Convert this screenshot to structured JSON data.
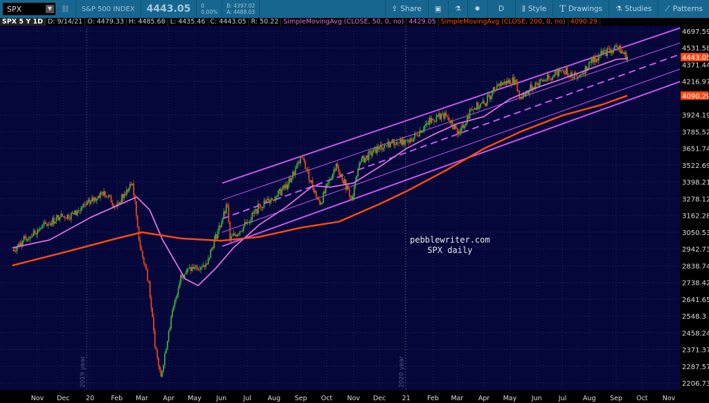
{
  "toolbar": {
    "symbol": "SPX",
    "symbol_desc": "S&P 500 INDEX",
    "last": "4443.05",
    "change": "0",
    "change_pct": "0.00%",
    "bid": "B: 4397.02",
    "ask": "A: 4488.03",
    "buttons": [
      {
        "label": "Share",
        "icon": "share-icon"
      },
      {
        "label": "",
        "icon": "camera-icon"
      },
      {
        "label": "",
        "icon": "flask-icon"
      },
      {
        "label": "",
        "icon": "gear-icon"
      },
      {
        "label": "D",
        "icon": ""
      },
      {
        "label": "Style",
        "icon": "candles-icon"
      },
      {
        "label": "Drawings",
        "icon": "text-t-icon"
      },
      {
        "label": "Studies",
        "icon": "flask-icon"
      },
      {
        "label": "Patterns",
        "icon": "pattern-icon"
      }
    ]
  },
  "infobar": {
    "title": "SPX 5 Y 1D",
    "date": "D: 9/14/21",
    "open": "O: 4479.33",
    "high": "H: 4485.68",
    "low": "L: 4435.46",
    "close": "C: 4443.05",
    "range": "R: 50.22",
    "sma50_label": "SimpleMovingAvg (CLOSE, 50, 0, no)",
    "sma50_value": "4429.05",
    "sma200_label": "SimpleMovingAvg (CLOSE, 200, 0, no)",
    "sma200_value": "4090.29"
  },
  "colors": {
    "background": "#05063a",
    "up": "#3fae3f",
    "down": "#e8461c",
    "sma50": "#e070e0",
    "sma200": "#ff4a10",
    "channel": "#cc55ee",
    "toolbar": "#17668f"
  },
  "chart_data": {
    "type": "candlestick",
    "scale": "log",
    "ylim": [
      2170,
      4760
    ],
    "grid": true,
    "yticks": [
      "4697.59",
      "4531.58",
      "4371.44",
      "4216.97",
      "3924.19",
      "3785.52",
      "3651.74",
      "3522.69",
      "3398.21",
      "3278.12",
      "3162.28",
      "3050.53",
      "2942.73",
      "2838.74",
      "2738.42",
      "2641.65",
      "2548.3",
      "2458.24",
      "2371.37",
      "2287.57",
      "2206.73"
    ],
    "xticks": [
      [
        "2019-11-01",
        "Nov"
      ],
      [
        "2019-12-01",
        "Dec"
      ],
      [
        "2020-01-01",
        "20"
      ],
      [
        "2020-02-01",
        "Feb"
      ],
      [
        "2020-03-01",
        "Mar"
      ],
      [
        "2020-04-01",
        "Apr"
      ],
      [
        "2020-05-01",
        "May"
      ],
      [
        "2020-06-01",
        "Jun"
      ],
      [
        "2020-07-01",
        "Jul"
      ],
      [
        "2020-08-01",
        "Aug"
      ],
      [
        "2020-09-01",
        "Sep"
      ],
      [
        "2020-10-01",
        "Oct"
      ],
      [
        "2020-11-01",
        "Nov"
      ],
      [
        "2020-12-01",
        "Dec"
      ],
      [
        "2021-01-01",
        "21"
      ],
      [
        "2021-02-01",
        "Feb"
      ],
      [
        "2021-03-01",
        "Mar"
      ],
      [
        "2021-04-01",
        "Apr"
      ],
      [
        "2021-05-01",
        "May"
      ],
      [
        "2021-06-01",
        "Jun"
      ],
      [
        "2021-07-01",
        "Jul"
      ],
      [
        "2021-08-01",
        "Aug"
      ],
      [
        "2021-09-01",
        "Sep"
      ],
      [
        "2021-10-01",
        "Oct"
      ],
      [
        "2021-11-01",
        "Nov"
      ]
    ],
    "year_labels": [
      [
        "2019-12-28",
        "2019 year"
      ],
      [
        "2020-12-31",
        "2020 year"
      ]
    ],
    "price_labels": [
      {
        "value": 4443.05,
        "text": "4443.05"
      },
      {
        "value": 4090.29,
        "text": "4090.29"
      }
    ],
    "close": [
      [
        "2019-10-03",
        2930
      ],
      [
        "2019-10-15",
        2995
      ],
      [
        "2019-11-01",
        3066
      ],
      [
        "2019-11-27",
        3153
      ],
      [
        "2019-12-13",
        3168
      ],
      [
        "2020-01-02",
        3257
      ],
      [
        "2020-01-17",
        3330
      ],
      [
        "2020-01-31",
        3225
      ],
      [
        "2020-02-19",
        3386
      ],
      [
        "2020-02-28",
        2954
      ],
      [
        "2020-03-09",
        2746
      ],
      [
        "2020-03-16",
        2386
      ],
      [
        "2020-03-23",
        2237
      ],
      [
        "2020-04-01",
        2470
      ],
      [
        "2020-04-15",
        2783
      ],
      [
        "2020-05-01",
        2830
      ],
      [
        "2020-05-14",
        2852
      ],
      [
        "2020-06-08",
        3232
      ],
      [
        "2020-06-11",
        3002
      ],
      [
        "2020-07-01",
        3115
      ],
      [
        "2020-07-15",
        3227
      ],
      [
        "2020-08-03",
        3294
      ],
      [
        "2020-08-17",
        3381
      ],
      [
        "2020-09-02",
        3580
      ],
      [
        "2020-09-23",
        3237
      ],
      [
        "2020-10-12",
        3534
      ],
      [
        "2020-10-30",
        3270
      ],
      [
        "2020-11-09",
        3550
      ],
      [
        "2020-12-01",
        3662
      ],
      [
        "2020-12-15",
        3695
      ],
      [
        "2021-01-04",
        3700
      ],
      [
        "2021-01-25",
        3855
      ],
      [
        "2021-02-12",
        3934
      ],
      [
        "2021-03-04",
        3768
      ],
      [
        "2021-03-17",
        3974
      ],
      [
        "2021-04-01",
        4020
      ],
      [
        "2021-04-16",
        4185
      ],
      [
        "2021-05-07",
        4232
      ],
      [
        "2021-05-12",
        4063
      ],
      [
        "2021-06-01",
        4202
      ],
      [
        "2021-06-15",
        4246
      ],
      [
        "2021-07-01",
        4320
      ],
      [
        "2021-07-19",
        4258
      ],
      [
        "2021-08-02",
        4387
      ],
      [
        "2021-08-16",
        4479
      ],
      [
        "2021-09-02",
        4537
      ],
      [
        "2021-09-14",
        4443.05
      ]
    ],
    "series": [
      {
        "name": "SimpleMovingAvg (CLOSE, 50, 0, no)",
        "points": [
          [
            "2019-10-03",
            2950
          ],
          [
            "2019-11-15",
            3000
          ],
          [
            "2020-01-02",
            3150
          ],
          [
            "2020-02-24",
            3290
          ],
          [
            "2020-03-10",
            3200
          ],
          [
            "2020-03-25",
            3000
          ],
          [
            "2020-04-20",
            2760
          ],
          [
            "2020-05-05",
            2720
          ],
          [
            "2020-05-25",
            2820
          ],
          [
            "2020-06-15",
            2950
          ],
          [
            "2020-07-15",
            3100
          ],
          [
            "2020-08-15",
            3220
          ],
          [
            "2020-09-15",
            3370
          ],
          [
            "2020-10-05",
            3360
          ],
          [
            "2020-11-01",
            3390
          ],
          [
            "2020-12-01",
            3510
          ],
          [
            "2021-01-01",
            3650
          ],
          [
            "2021-02-01",
            3760
          ],
          [
            "2021-03-01",
            3850
          ],
          [
            "2021-04-01",
            3910
          ],
          [
            "2021-05-01",
            4060
          ],
          [
            "2021-06-01",
            4160
          ],
          [
            "2021-07-01",
            4240
          ],
          [
            "2021-08-01",
            4330
          ],
          [
            "2021-09-01",
            4420
          ],
          [
            "2021-09-14",
            4429.05
          ]
        ]
      },
      {
        "name": "SimpleMovingAvg (CLOSE, 200, 0, no)",
        "points": [
          [
            "2019-10-03",
            2840
          ],
          [
            "2019-12-01",
            2920
          ],
          [
            "2020-02-01",
            3010
          ],
          [
            "2020-03-01",
            3050
          ],
          [
            "2020-04-15",
            3010
          ],
          [
            "2020-06-01",
            2995
          ],
          [
            "2020-07-15",
            3020
          ],
          [
            "2020-09-01",
            3080
          ],
          [
            "2020-10-15",
            3120
          ],
          [
            "2020-12-01",
            3240
          ],
          [
            "2021-01-01",
            3330
          ],
          [
            "2021-02-15",
            3480
          ],
          [
            "2021-04-01",
            3650
          ],
          [
            "2021-05-15",
            3790
          ],
          [
            "2021-07-01",
            3920
          ],
          [
            "2021-08-15",
            4010
          ],
          [
            "2021-09-14",
            4090.29
          ]
        ]
      }
    ],
    "channel_lines": [
      {
        "style": "thick",
        "from": [
          "2020-06-02",
          3390
        ],
        "to": [
          "2021-11-14",
          4730
        ]
      },
      {
        "style": "thin",
        "from": [
          "2020-06-02",
          3270
        ],
        "to": [
          "2021-11-14",
          4580
        ]
      },
      {
        "style": "dashed",
        "from": [
          "2020-06-02",
          3140
        ],
        "to": [
          "2021-11-14",
          4470
        ]
      },
      {
        "style": "thin",
        "from": [
          "2020-06-02",
          3050
        ],
        "to": [
          "2021-11-14",
          4330
        ]
      },
      {
        "style": "thick",
        "from": [
          "2020-06-02",
          2960
        ],
        "to": [
          "2021-11-14",
          4215
        ]
      }
    ],
    "annotation": [
      "pebblewriter.com",
      "SPX daily"
    ]
  }
}
